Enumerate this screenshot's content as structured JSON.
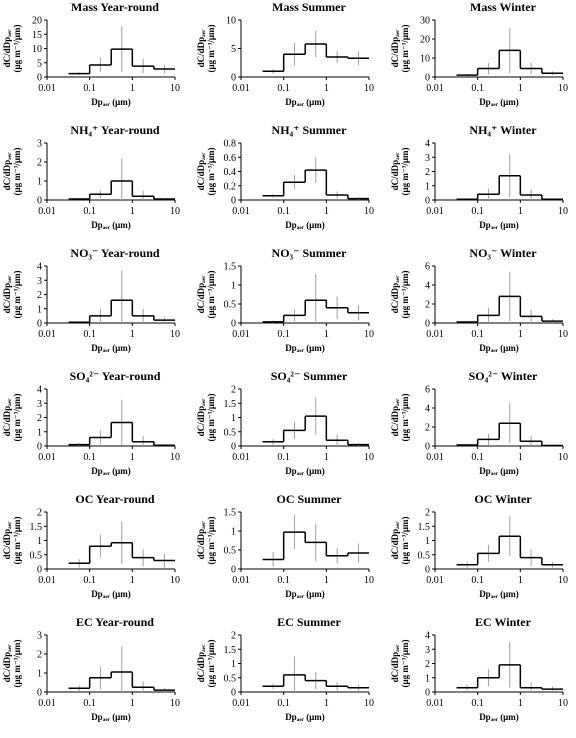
{
  "chart_data": [
    {
      "type": "histogram",
      "title": "Mass Year-round",
      "bins": [
        0.032,
        0.1,
        0.32,
        1,
        3.2,
        10
      ],
      "values": [
        1.2,
        4.2,
        9.8,
        3.8,
        2.8
      ],
      "errors": [
        0.5,
        2.5,
        8,
        2.5,
        1.5
      ],
      "xlim": [
        0.01,
        10
      ],
      "xticks": [
        0.01,
        0.1,
        1,
        10
      ],
      "ylim": [
        0,
        20
      ],
      "yticks": [
        0,
        5,
        10,
        15,
        20
      ],
      "log_x": true,
      "xlabel": "Dpₐₑᵣ (μm)",
      "ylabel": [
        "dC/dDpₐₑᵣ",
        "(μg m⁻³/μm)"
      ],
      "color": "#000000",
      "error_color": "#a0a0a0"
    },
    {
      "type": "histogram",
      "title": "Mass Summer",
      "bins": [
        0.032,
        0.1,
        0.32,
        1,
        3.2,
        10
      ],
      "values": [
        1.0,
        4.0,
        5.8,
        3.5,
        3.3
      ],
      "errors": [
        0.4,
        2,
        2.3,
        1,
        1.2
      ],
      "xlim": [
        0.01,
        10
      ],
      "xticks": [
        0.01,
        0.1,
        1,
        10
      ],
      "ylim": [
        0,
        10
      ],
      "yticks": [
        0,
        5,
        10
      ],
      "log_x": true,
      "xlabel": "Dpₐₑᵣ (μm)",
      "ylabel": [
        "dC/dDpₐₑᵣ",
        "(μg m⁻³/μm)"
      ],
      "color": "#000000",
      "error_color": "#a0a0a0"
    },
    {
      "type": "histogram",
      "title": "Mass Winter",
      "bins": [
        0.032,
        0.1,
        0.32,
        1,
        3.2,
        10
      ],
      "values": [
        1,
        4.5,
        14,
        4.5,
        2
      ],
      "errors": [
        0.5,
        3,
        12,
        3,
        1
      ],
      "xlim": [
        0.01,
        10
      ],
      "xticks": [
        0.01,
        0.1,
        1,
        10
      ],
      "ylim": [
        0,
        30
      ],
      "yticks": [
        0,
        10,
        20,
        30
      ],
      "log_x": true,
      "xlabel": "Dpₐₑᵣ (μm)",
      "ylabel": [
        "dC/dDpₐₑᵣ",
        "(μg m⁻³/μm)"
      ],
      "color": "#000000",
      "error_color": "#a0a0a0"
    },
    {
      "type": "histogram",
      "title": "NH₄⁺ Year-round",
      "bins": [
        0.032,
        0.1,
        0.32,
        1,
        3.2,
        10
      ],
      "values": [
        0.05,
        0.3,
        1.0,
        0.2,
        0.05
      ],
      "errors": [
        0.03,
        0.2,
        1.2,
        0.3,
        0.05
      ],
      "xlim": [
        0.01,
        10
      ],
      "xticks": [
        0.01,
        0.1,
        1,
        10
      ],
      "ylim": [
        0,
        3
      ],
      "yticks": [
        0,
        1,
        2,
        3
      ],
      "log_x": true,
      "xlabel": "Dpₐₑᵣ (μm)",
      "ylabel": [
        "dC/dDpₐₑᵣ",
        "(μg m⁻³/μm)"
      ],
      "color": "#000000",
      "error_color": "#a0a0a0"
    },
    {
      "type": "histogram",
      "title": "NH₄⁺ Summer",
      "bins": [
        0.032,
        0.1,
        0.32,
        1,
        3.2,
        10
      ],
      "values": [
        0.06,
        0.25,
        0.42,
        0.07,
        0.02
      ],
      "errors": [
        0.03,
        0.1,
        0.18,
        0.05,
        0.02
      ],
      "xlim": [
        0.01,
        10
      ],
      "xticks": [
        0.01,
        0.1,
        1,
        10
      ],
      "ylim": [
        0,
        0.8
      ],
      "yticks": [
        0,
        0.2,
        0.4,
        0.6,
        0.8
      ],
      "log_x": true,
      "xlabel": "Dpₐₑᵣ (μm)",
      "ylabel": [
        "dC/dDpₐₑᵣ",
        "(μg m⁻³/μm)"
      ],
      "color": "#000000",
      "error_color": "#a0a0a0"
    },
    {
      "type": "histogram",
      "title": "NH₄⁺ Winter",
      "bins": [
        0.032,
        0.1,
        0.32,
        1,
        3.2,
        10
      ],
      "values": [
        0.05,
        0.4,
        1.7,
        0.35,
        0.05
      ],
      "errors": [
        0.05,
        0.4,
        1.5,
        0.4,
        0.05
      ],
      "xlim": [
        0.01,
        10
      ],
      "xticks": [
        0.01,
        0.1,
        1,
        10
      ],
      "ylim": [
        0,
        4
      ],
      "yticks": [
        0,
        1,
        2,
        3,
        4
      ],
      "log_x": true,
      "xlabel": "Dpₐₑᵣ (μm)",
      "ylabel": [
        "dC/dDpₐₑᵣ",
        "(μg m⁻³/μm)"
      ],
      "color": "#000000",
      "error_color": "#a0a0a0"
    },
    {
      "type": "histogram",
      "title": "NO₃⁻ Year-round",
      "bins": [
        0.032,
        0.1,
        0.32,
        1,
        3.2,
        10
      ],
      "values": [
        0.05,
        0.5,
        1.6,
        0.5,
        0.2
      ],
      "errors": [
        0.05,
        0.5,
        2.1,
        0.5,
        0.2
      ],
      "xlim": [
        0.01,
        10
      ],
      "xticks": [
        0.01,
        0.1,
        1,
        10
      ],
      "ylim": [
        0,
        4
      ],
      "yticks": [
        0,
        1,
        2,
        3,
        4
      ],
      "log_x": true,
      "xlabel": "Dpₐₑᵣ (μm)",
      "ylabel": [
        "dC/dDpₐₑᵣ",
        "(μg m⁻³/μm)"
      ],
      "color": "#000000",
      "error_color": "#a0a0a0"
    },
    {
      "type": "histogram",
      "title": "NO₃⁻ Summer",
      "bins": [
        0.032,
        0.1,
        0.32,
        1,
        3.2,
        10
      ],
      "values": [
        0.03,
        0.2,
        0.6,
        0.4,
        0.27
      ],
      "errors": [
        0.03,
        0.15,
        0.7,
        0.3,
        0.2
      ],
      "xlim": [
        0.01,
        10
      ],
      "xticks": [
        0.01,
        0.1,
        1,
        10
      ],
      "ylim": [
        0,
        1.5
      ],
      "yticks": [
        0,
        0.5,
        1,
        1.5
      ],
      "log_x": true,
      "xlabel": "Dpₐₑᵣ (μm)",
      "ylabel": [
        "dC/dDpₐₑᵣ",
        "(μg m⁻³/μm)"
      ],
      "color": "#000000",
      "error_color": "#a0a0a0"
    },
    {
      "type": "histogram",
      "title": "NO₃⁻ Winter",
      "bins": [
        0.032,
        0.1,
        0.32,
        1,
        3.2,
        10
      ],
      "values": [
        0.1,
        0.8,
        2.8,
        0.7,
        0.2
      ],
      "errors": [
        0.1,
        0.8,
        2.6,
        0.7,
        0.2
      ],
      "xlim": [
        0.01,
        10
      ],
      "xticks": [
        0.01,
        0.1,
        1,
        10
      ],
      "ylim": [
        0,
        6
      ],
      "yticks": [
        0,
        2,
        4,
        6
      ],
      "log_x": true,
      "xlabel": "Dpₐₑᵣ (μm)",
      "ylabel": [
        "dC/dDpₐₑᵣ",
        "(μg m⁻³/μm)"
      ],
      "color": "#000000",
      "error_color": "#a0a0a0"
    },
    {
      "type": "histogram",
      "title": "SO₄²⁻ Year-round",
      "bins": [
        0.032,
        0.1,
        0.32,
        1,
        3.2,
        10
      ],
      "values": [
        0.1,
        0.6,
        1.65,
        0.3,
        0.05
      ],
      "errors": [
        0.1,
        0.5,
        1.6,
        0.4,
        0.05
      ],
      "xlim": [
        0.01,
        10
      ],
      "xticks": [
        0.01,
        0.1,
        1,
        10
      ],
      "ylim": [
        0,
        4
      ],
      "yticks": [
        0,
        1,
        2,
        3,
        4
      ],
      "log_x": true,
      "xlabel": "Dpₐₑᵣ (μm)",
      "ylabel": [
        "dC/dDpₐₑᵣ",
        "(μg m⁻³/μm)"
      ],
      "color": "#000000",
      "error_color": "#a0a0a0"
    },
    {
      "type": "histogram",
      "title": "SO₄²⁻ Summer",
      "bins": [
        0.032,
        0.1,
        0.32,
        1,
        3.2,
        10
      ],
      "values": [
        0.15,
        0.55,
        1.05,
        0.2,
        0.05
      ],
      "errors": [
        0.1,
        0.3,
        0.65,
        0.2,
        0.05
      ],
      "xlim": [
        0.01,
        10
      ],
      "xticks": [
        0.01,
        0.1,
        1,
        10
      ],
      "ylim": [
        0,
        2
      ],
      "yticks": [
        0,
        0.5,
        1,
        1.5,
        2
      ],
      "log_x": true,
      "xlabel": "Dpₐₑᵣ (μm)",
      "ylabel": [
        "dC/dDpₐₑᵣ",
        "(μg m⁻³/μm)"
      ],
      "color": "#000000",
      "error_color": "#a0a0a0"
    },
    {
      "type": "histogram",
      "title": "SO₄²⁻ Winter",
      "bins": [
        0.032,
        0.1,
        0.32,
        1,
        3.2,
        10
      ],
      "values": [
        0.1,
        0.7,
        2.4,
        0.5,
        0.05
      ],
      "errors": [
        0.1,
        0.6,
        2.1,
        0.6,
        0.1
      ],
      "xlim": [
        0.01,
        10
      ],
      "xticks": [
        0.01,
        0.1,
        1,
        10
      ],
      "ylim": [
        0,
        6
      ],
      "yticks": [
        0,
        2,
        4,
        6
      ],
      "log_x": true,
      "xlabel": "Dpₐₑᵣ (μm)",
      "ylabel": [
        "dC/dDpₐₑᵣ",
        "(μg m⁻³/μm)"
      ],
      "color": "#000000",
      "error_color": "#a0a0a0"
    },
    {
      "type": "histogram",
      "title": "OC Year-round",
      "bins": [
        0.032,
        0.1,
        0.32,
        1,
        3.2,
        10
      ],
      "values": [
        0.2,
        0.8,
        0.92,
        0.4,
        0.3
      ],
      "errors": [
        0.15,
        0.4,
        0.75,
        0.3,
        0.25
      ],
      "xlim": [
        0.01,
        10
      ],
      "xticks": [
        0.01,
        0.1,
        1,
        10
      ],
      "ylim": [
        0,
        2
      ],
      "yticks": [
        0,
        0.5,
        1,
        1.5,
        2
      ],
      "log_x": true,
      "xlabel": "Dpₐₑᵣ (μm)",
      "ylabel": [
        "dC/dDpₐₑᵣ",
        "(μg m⁻³/μm)"
      ],
      "color": "#000000",
      "error_color": "#a0a0a0"
    },
    {
      "type": "histogram",
      "title": "OC Summer",
      "bins": [
        0.032,
        0.1,
        0.32,
        1,
        3.2,
        10
      ],
      "values": [
        0.25,
        0.97,
        0.7,
        0.35,
        0.42
      ],
      "errors": [
        0.2,
        0.45,
        0.5,
        0.2,
        0.25
      ],
      "xlim": [
        0.01,
        10
      ],
      "xticks": [
        0.01,
        0.1,
        1,
        10
      ],
      "ylim": [
        0,
        1.5
      ],
      "yticks": [
        0,
        0.5,
        1,
        1.5
      ],
      "log_x": true,
      "xlabel": "Dpₐₑᵣ (μm)",
      "ylabel": [
        "dC/dDpₐₑᵣ",
        "(μg m⁻³/μm)"
      ],
      "color": "#000000",
      "error_color": "#a0a0a0"
    },
    {
      "type": "histogram",
      "title": "OC Winter",
      "bins": [
        0.032,
        0.1,
        0.32,
        1,
        3.2,
        10
      ],
      "values": [
        0.15,
        0.55,
        1.15,
        0.4,
        0.15
      ],
      "errors": [
        0.1,
        0.3,
        0.7,
        0.3,
        0.1
      ],
      "xlim": [
        0.01,
        10
      ],
      "xticks": [
        0.01,
        0.1,
        1,
        10
      ],
      "ylim": [
        0,
        2
      ],
      "yticks": [
        0,
        0.5,
        1,
        1.5,
        2
      ],
      "log_x": true,
      "xlabel": "Dpₐₑᵣ (μm)",
      "ylabel": [
        "dC/dDpₐₑᵣ",
        "(μg m⁻³/μm)"
      ],
      "color": "#000000",
      "error_color": "#a0a0a0"
    },
    {
      "type": "histogram",
      "title": "EC Year-round",
      "bins": [
        0.032,
        0.1,
        0.32,
        1,
        3.2,
        10
      ],
      "values": [
        0.2,
        0.75,
        1.05,
        0.25,
        0.1
      ],
      "errors": [
        0.15,
        0.6,
        1.35,
        0.3,
        0.1
      ],
      "xlim": [
        0.01,
        10
      ],
      "xticks": [
        0.01,
        0.1,
        1,
        10
      ],
      "ylim": [
        0,
        3
      ],
      "yticks": [
        0,
        1,
        2,
        3
      ],
      "log_x": true,
      "xlabel": "Dpₐₑᵣ (μm)",
      "ylabel": [
        "dC/dDpₐₑᵣ",
        "(μg m⁻³/μm)"
      ],
      "color": "#000000",
      "error_color": "#a0a0a0"
    },
    {
      "type": "histogram",
      "title": "EC Summer",
      "bins": [
        0.032,
        0.1,
        0.32,
        1,
        3.2,
        10
      ],
      "values": [
        0.2,
        0.6,
        0.4,
        0.2,
        0.15
      ],
      "errors": [
        0.1,
        0.65,
        0.3,
        0.15,
        0.1
      ],
      "xlim": [
        0.01,
        10
      ],
      "xticks": [
        0.01,
        0.1,
        1,
        10
      ],
      "ylim": [
        0,
        2
      ],
      "yticks": [
        0,
        0.5,
        1,
        1.5,
        2
      ],
      "log_x": true,
      "xlabel": "Dpₐₑᵣ (μm)",
      "ylabel": [
        "dC/dDpₐₑᵣ",
        "(μg m⁻³/μm)"
      ],
      "color": "#000000",
      "error_color": "#a0a0a0"
    },
    {
      "type": "histogram",
      "title": "EC Winter",
      "bins": [
        0.032,
        0.1,
        0.32,
        1,
        3.2,
        10
      ],
      "values": [
        0.3,
        1.0,
        1.9,
        0.3,
        0.2
      ],
      "errors": [
        0.2,
        0.6,
        1.6,
        0.4,
        0.2
      ],
      "xlim": [
        0.01,
        10
      ],
      "xticks": [
        0.01,
        0.1,
        1,
        10
      ],
      "ylim": [
        0,
        4
      ],
      "yticks": [
        0,
        1,
        2,
        3,
        4
      ],
      "log_x": true,
      "xlabel": "Dpₐₑᵣ (μm)",
      "ylabel": [
        "dC/dDpₐₑᵣ",
        "(μg m⁻³/μm)"
      ],
      "color": "#000000",
      "error_color": "#a0a0a0"
    }
  ]
}
